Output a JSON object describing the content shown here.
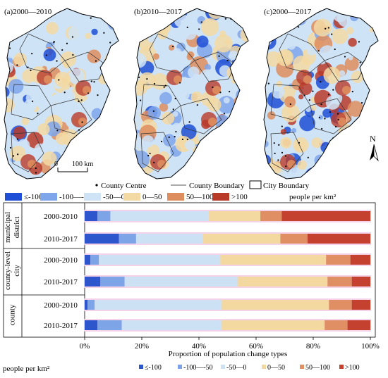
{
  "maps": {
    "panels": [
      {
        "label": "(a)2000—2010"
      },
      {
        "label": "(b)2010—2017"
      },
      {
        "label": "(c)2000—2017"
      }
    ],
    "scale_bar_zero": "0",
    "scale_bar_label": "100 km",
    "north_label": "N",
    "legend": {
      "county_centre": "County Centre",
      "county_boundary": "County Boundary",
      "city_boundary": "City Boundary",
      "unit": "people per km²",
      "classes": [
        {
          "label": "≤-100",
          "color": "#1f4fd6"
        },
        {
          "label": "-100—-50",
          "color": "#7fa6ea"
        },
        {
          "label": "-50—0",
          "color": "#cfe3f7"
        },
        {
          "label": "0—50",
          "color": "#f3d9a3"
        },
        {
          "label": "50—100",
          "color": "#de8d5e"
        },
        {
          "label": ">100",
          "color": "#b83b2a"
        }
      ]
    }
  },
  "chart_data": {
    "type": "bar",
    "orientation": "horizontal",
    "stacked": true,
    "xlabel": "Proportion of population change types",
    "xlim": [
      0,
      100
    ],
    "xticks": [
      "0%",
      "20%",
      "40%",
      "60%",
      "80%",
      "100%"
    ],
    "groups": [
      {
        "name": "municipal district",
        "lines": [
          "municipal",
          "district"
        ],
        "rows": [
          {
            "label": "2000-2010",
            "values": [
              4.5,
              4.5,
              34.5,
              18,
              7.5,
              31
            ]
          },
          {
            "label": "2010-2017",
            "values": [
              12,
              6,
              23.5,
              27,
              9.5,
              22
            ]
          }
        ]
      },
      {
        "name": "county-level city",
        "lines": [
          "county-level",
          "city"
        ],
        "rows": [
          {
            "label": "2000-2010",
            "values": [
              2,
              3,
              42.5,
              37,
              8.5,
              7
            ]
          },
          {
            "label": "2010-2017",
            "values": [
              5.5,
              8.5,
              39.5,
              31.5,
              8.5,
              6.5
            ]
          }
        ]
      },
      {
        "name": "county",
        "lines": [
          "county"
        ],
        "rows": [
          {
            "label": "2000-2010",
            "values": [
              1,
              2.5,
              44.5,
              37.5,
              8,
              6.5
            ]
          },
          {
            "label": "2010-2017",
            "values": [
              4.5,
              8.5,
              35,
              36,
              8,
              8
            ]
          }
        ]
      }
    ],
    "legend": {
      "title": "people per km²",
      "entries": [
        "≤-100",
        "-100—-50",
        "-50—0",
        "0—50",
        "50—100",
        ">100"
      ],
      "colors": [
        "#2e56cc",
        "#7ea4e8",
        "#cde1f5",
        "#f3d8a0",
        "#df8f63",
        "#c4402f"
      ]
    }
  }
}
